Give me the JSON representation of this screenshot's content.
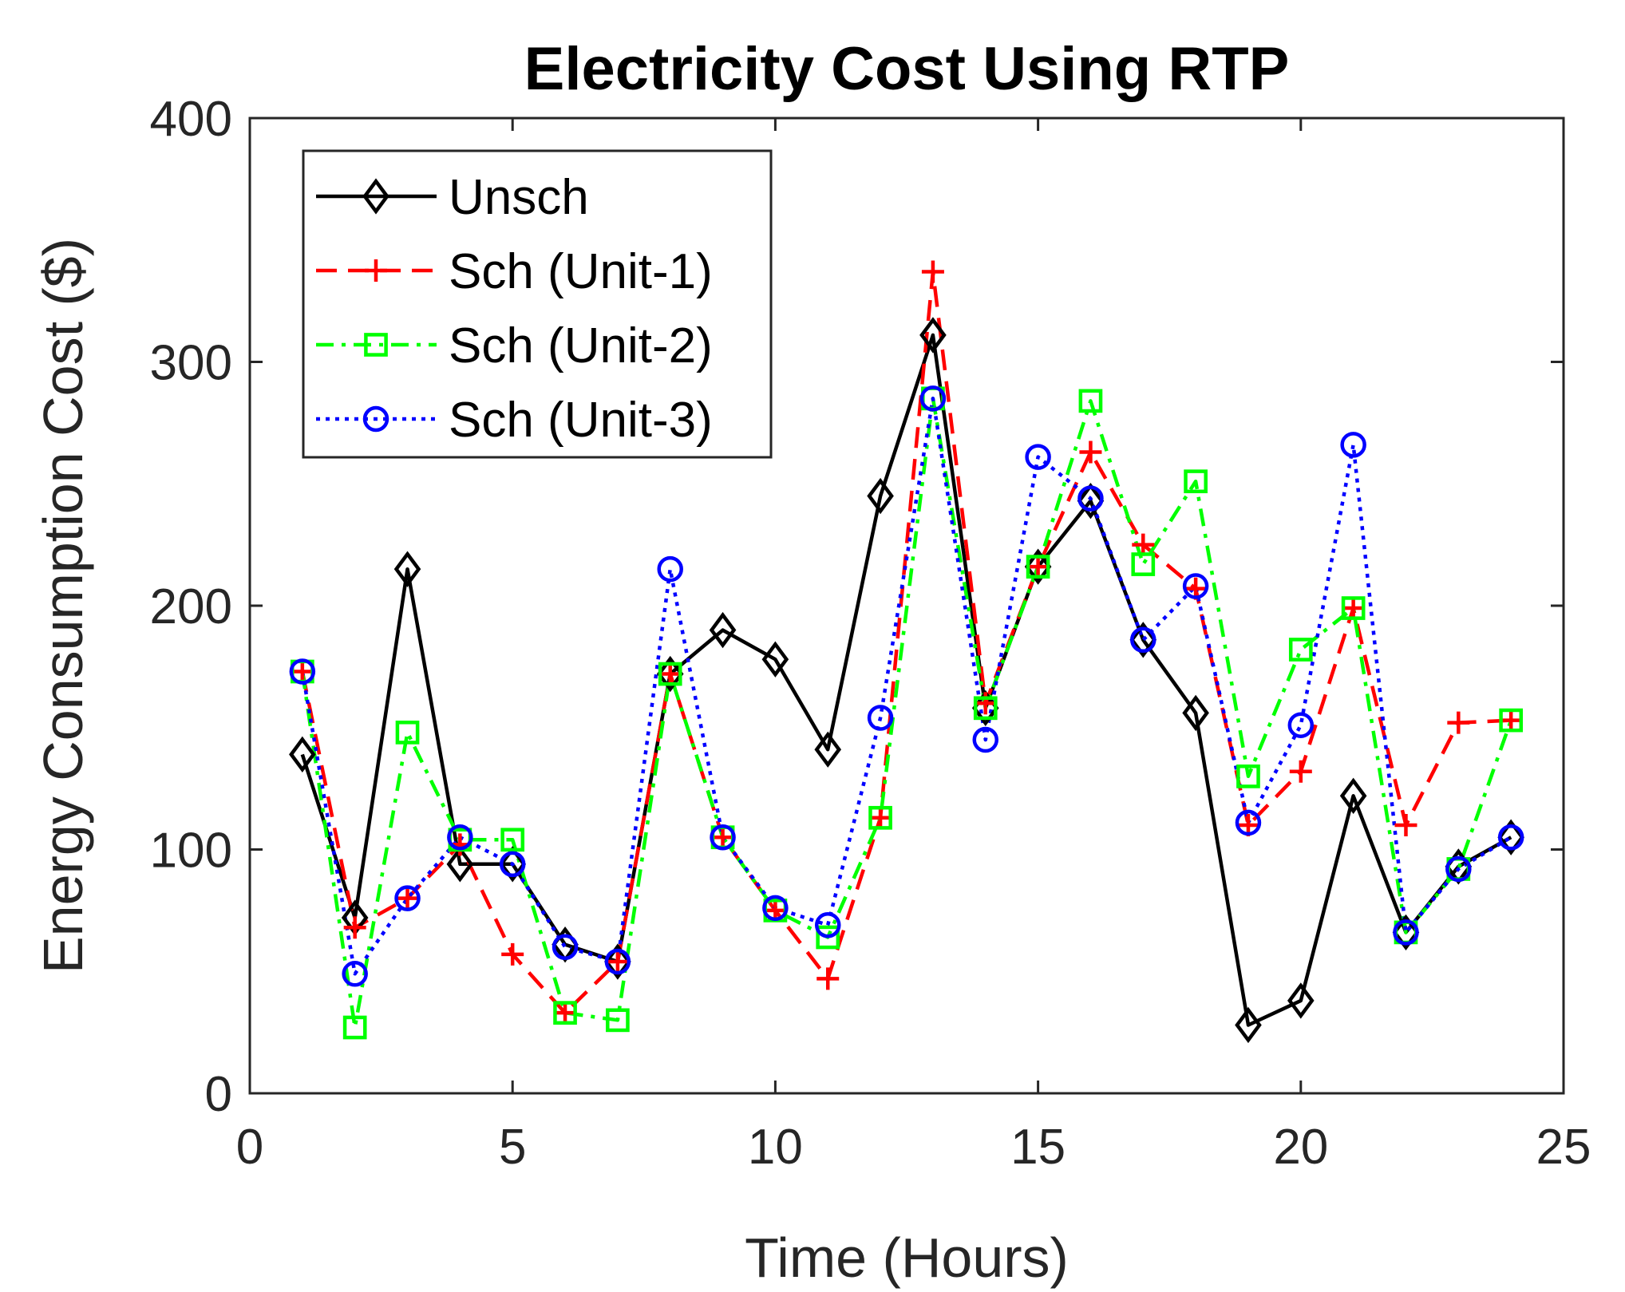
{
  "chart_data": {
    "type": "line",
    "title": "Electricity Cost Using RTP",
    "xlabel": "Time (Hours)",
    "ylabel": "Energy Consumption Cost ($)",
    "xlim": [
      0,
      25
    ],
    "ylim": [
      0,
      400
    ],
    "xticks": [
      0,
      5,
      10,
      15,
      20,
      25
    ],
    "yticks": [
      0,
      100,
      200,
      300,
      400
    ],
    "grid": false,
    "legend_position": "top-left",
    "x": [
      1,
      2,
      3,
      4,
      5,
      6,
      7,
      8,
      9,
      10,
      11,
      12,
      13,
      14,
      15,
      16,
      17,
      18,
      19,
      20,
      21,
      22,
      23,
      24
    ],
    "series": [
      {
        "name": "Unsch",
        "color": "#000000",
        "line_style": "solid",
        "marker": "diamond",
        "values": [
          139,
          72,
          215,
          94,
          94,
          61,
          54,
          172,
          190,
          178,
          141,
          245,
          311,
          158,
          216,
          243,
          186,
          156,
          28,
          38,
          122,
          66,
          93,
          105
        ]
      },
      {
        "name": "Sch (Unit-1)",
        "color": "#ff0000",
        "line_style": "dashed",
        "marker": "plus",
        "values": [
          173,
          68,
          80,
          102,
          57,
          33,
          54,
          172,
          105,
          75,
          47,
          113,
          337,
          160,
          216,
          263,
          225,
          207,
          110,
          132,
          199,
          110,
          152,
          153
        ]
      },
      {
        "name": "Sch (Unit-2)",
        "color": "#00ff00",
        "line_style": "dashdot",
        "marker": "square",
        "values": [
          173,
          27,
          148,
          104,
          104,
          33,
          30,
          172,
          105,
          75,
          64,
          113,
          285,
          158,
          216,
          284,
          217,
          251,
          130,
          182,
          199,
          66,
          92,
          153
        ]
      },
      {
        "name": "Sch (Unit-3)",
        "color": "#0000ff",
        "line_style": "dotted",
        "marker": "circle",
        "values": [
          173,
          49,
          80,
          105,
          94,
          60,
          54,
          215,
          105,
          76,
          69,
          154,
          285,
          145,
          261,
          244,
          186,
          208,
          111,
          151,
          266,
          66,
          92,
          105
        ]
      }
    ]
  }
}
